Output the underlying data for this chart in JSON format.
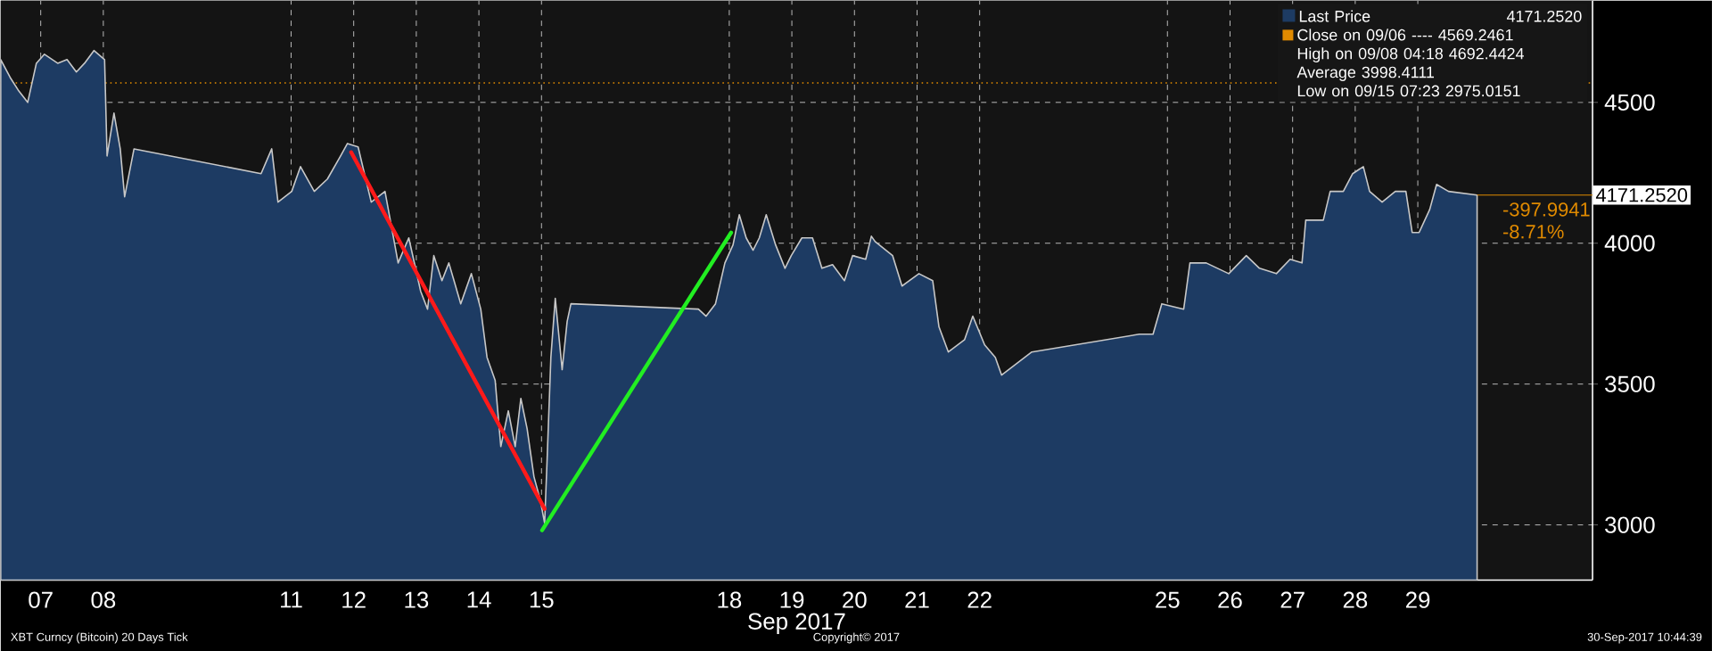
{
  "chart_data": {
    "type": "area",
    "xlabel": "Sep 2017",
    "xlim": [
      "2017-09-06T20:40",
      "2017-10-02T07:00"
    ],
    "ylim": [
      2804,
      4861
    ],
    "xticks": [
      {
        "value": "2017-09-07T12:00",
        "label": "07"
      },
      {
        "value": "2017-09-08T12:00",
        "label": "08"
      },
      {
        "value": "2017-09-11T12:00",
        "label": "11"
      },
      {
        "value": "2017-09-12T12:00",
        "label": "12"
      },
      {
        "value": "2017-09-13T12:00",
        "label": "13"
      },
      {
        "value": "2017-09-14T12:00",
        "label": "14"
      },
      {
        "value": "2017-09-15T12:00",
        "label": "15"
      },
      {
        "value": "2017-09-18T12:00",
        "label": "18"
      },
      {
        "value": "2017-09-19T12:00",
        "label": "19"
      },
      {
        "value": "2017-09-20T12:00",
        "label": "20"
      },
      {
        "value": "2017-09-21T12:00",
        "label": "21"
      },
      {
        "value": "2017-09-22T12:00",
        "label": "22"
      },
      {
        "value": "2017-09-25T12:00",
        "label": "25"
      },
      {
        "value": "2017-09-26T12:00",
        "label": "26"
      },
      {
        "value": "2017-09-27T12:00",
        "label": "27"
      },
      {
        "value": "2017-09-28T12:00",
        "label": "28"
      },
      {
        "value": "2017-09-29T12:00",
        "label": "29"
      }
    ],
    "yticks": [
      3000,
      3500,
      4000,
      4500
    ],
    "grid": true,
    "legend": "top right",
    "series": [
      {
        "name": "Last Price",
        "color": "#1d3b63",
        "x": [
          "2017-09-06T20:40",
          "2017-09-07T00:15",
          "2017-09-07T03:20",
          "2017-09-07T07:00",
          "2017-09-07T10:20",
          "2017-09-07T13:25",
          "2017-09-07T18:30",
          "2017-09-07T22:05",
          "2017-09-08T01:40",
          "2017-09-08T04:48",
          "2017-09-08T08:24",
          "2017-09-08T12:29",
          "2017-09-08T13:26",
          "2017-09-08T16:05",
          "2017-09-08T18:29",
          "2017-09-08T20:10",
          "2017-09-08T23:46",
          "2017-09-11T00:29",
          "2017-09-11T04:34",
          "2017-09-11T06:58",
          "2017-09-11T12:14",
          "2017-09-11T15:36",
          "2017-09-11T20:53",
          "2017-09-12T01:55",
          "2017-09-12T06:58",
          "2017-09-12T09:36",
          "2017-09-12T13:41",
          "2017-09-12T18:43",
          "2017-09-13T00:00",
          "2017-09-13T05:02",
          "2017-09-13T09:07",
          "2017-09-13T13:41",
          "2017-09-13T16:19",
          "2017-09-13T18:43",
          "2017-09-13T21:50",
          "2017-09-14T00:29",
          "2017-09-14T05:02",
          "2017-09-14T09:07",
          "2017-09-14T12:43",
          "2017-09-14T15:07",
          "2017-09-14T18:14",
          "2017-09-14T20:24",
          "2017-09-14T23:17",
          "2017-09-15T01:55",
          "2017-09-15T04:05",
          "2017-09-15T06:29",
          "2017-09-15T09:07",
          "2017-09-15T11:31",
          "2017-09-15T13:12",
          "2017-09-15T14:10",
          "2017-09-15T15:36",
          "2017-09-15T17:17",
          "2017-09-15T19:55",
          "2017-09-15T21:50",
          "2017-09-15T23:17",
          "2017-09-18T00:10",
          "2017-09-18T03:07",
          "2017-09-18T06:43",
          "2017-09-18T10:19",
          "2017-09-18T13:26",
          "2017-09-18T15:50",
          "2017-09-18T18:29",
          "2017-09-18T21:07",
          "2017-09-18T23:31",
          "2017-09-19T02:10",
          "2017-09-19T05:46",
          "2017-09-19T09:22",
          "2017-09-19T11:46",
          "2017-09-19T15:50",
          "2017-09-19T19:55",
          "2017-09-19T23:31",
          "2017-09-20T03:36",
          "2017-09-20T08:10",
          "2017-09-20T11:17",
          "2017-09-20T16:19",
          "2017-09-20T18:29",
          "2017-09-20T19:55",
          "2017-09-21T02:38",
          "2017-09-21T06:14",
          "2017-09-21T12:43",
          "2017-09-21T18:00",
          "2017-09-21T20:24",
          "2017-09-22T00:00",
          "2017-09-22T06:14",
          "2017-09-22T09:22",
          "2017-09-22T13:55",
          "2017-09-22T18:00",
          "2017-09-22T20:24",
          "2017-09-23T08:00",
          "2017-09-25T01:12",
          "2017-09-25T06:29",
          "2017-09-25T09:50",
          "2017-09-25T18:14",
          "2017-09-25T20:38",
          "2017-09-26T02:53",
          "2017-09-26T11:31",
          "2017-09-26T18:14",
          "2017-09-26T23:17",
          "2017-09-27T05:46",
          "2017-09-27T11:02",
          "2017-09-27T15:36",
          "2017-09-27T17:02",
          "2017-09-27T23:46",
          "2017-09-28T02:24",
          "2017-09-28T07:26",
          "2017-09-28T11:02",
          "2017-09-28T15:07",
          "2017-09-28T17:31",
          "2017-09-28T22:19",
          "2017-09-29T03:22",
          "2017-09-29T07:26",
          "2017-09-29T09:50",
          "2017-09-29T12:29",
          "2017-09-29T16:34",
          "2017-09-29T19:12",
          "2017-09-29T23:46",
          "2017-09-30T10:44"
        ],
        "values": [
          4652,
          4589,
          4544,
          4500,
          4639,
          4671,
          4639,
          4652,
          4608,
          4639,
          4684,
          4652,
          4310,
          4462,
          4335,
          4165,
          4335,
          4247,
          4335,
          4146,
          4184,
          4272,
          4184,
          4228,
          4310,
          4354,
          4342,
          4146,
          4184,
          3930,
          4019,
          3829,
          3766,
          3956,
          3867,
          3930,
          3785,
          3892,
          3766,
          3595,
          3513,
          3278,
          3405,
          3278,
          3449,
          3342,
          3171,
          3089,
          3006,
          3234,
          3595,
          3804,
          3551,
          3722,
          3785,
          3766,
          3741,
          3785,
          3930,
          3994,
          4101,
          4019,
          3975,
          4019,
          4101,
          3994,
          3911,
          3956,
          4019,
          4019,
          3911,
          3924,
          3867,
          3956,
          3943,
          4025,
          4006,
          3956,
          3848,
          3892,
          3867,
          3703,
          3614,
          3658,
          3741,
          3639,
          3595,
          3532,
          3614,
          3677,
          3677,
          3785,
          3766,
          3930,
          3930,
          3892,
          3956,
          3911,
          3892,
          3943,
          3930,
          4082,
          4082,
          4184,
          4184,
          4247,
          4272,
          4184,
          4146,
          4184,
          4184,
          4038,
          4038,
          4120,
          4209,
          4184,
          4171
        ]
      },
      {
        "type": "line",
        "color": "#ff1a1a",
        "x": [
          "2017-09-12T11:02",
          "2017-09-15T13:12"
        ],
        "values": [
          4323,
          3057
        ]
      },
      {
        "type": "line",
        "color": "#22ee22",
        "x": [
          "2017-09-15T12:14",
          "2017-09-18T12:43"
        ],
        "values": [
          2981,
          4038
        ]
      }
    ],
    "ref_lines": [
      {
        "axis": "y",
        "value": 4569.2461,
        "label": "Close on 09/06 ---- 4569.2461",
        "color": "#e08a00",
        "line_style": "dotted"
      }
    ],
    "annotations": [
      "4171.2520",
      "High on 09/08 04:18 4692.4424",
      "Average 3998.4111",
      "Low on 09/15 07:23 2975.0151",
      {
        "text": "4171.2520",
        "x": "2017-09-30T10:44",
        "y": 4171
      },
      "-397.9941",
      "-8.71%",
      "XBT Curncy (Bitcoin) 20 Days  Tick",
      "Copyright© 2017",
      "30-Sep-2017 10:44:39"
    ]
  }
}
